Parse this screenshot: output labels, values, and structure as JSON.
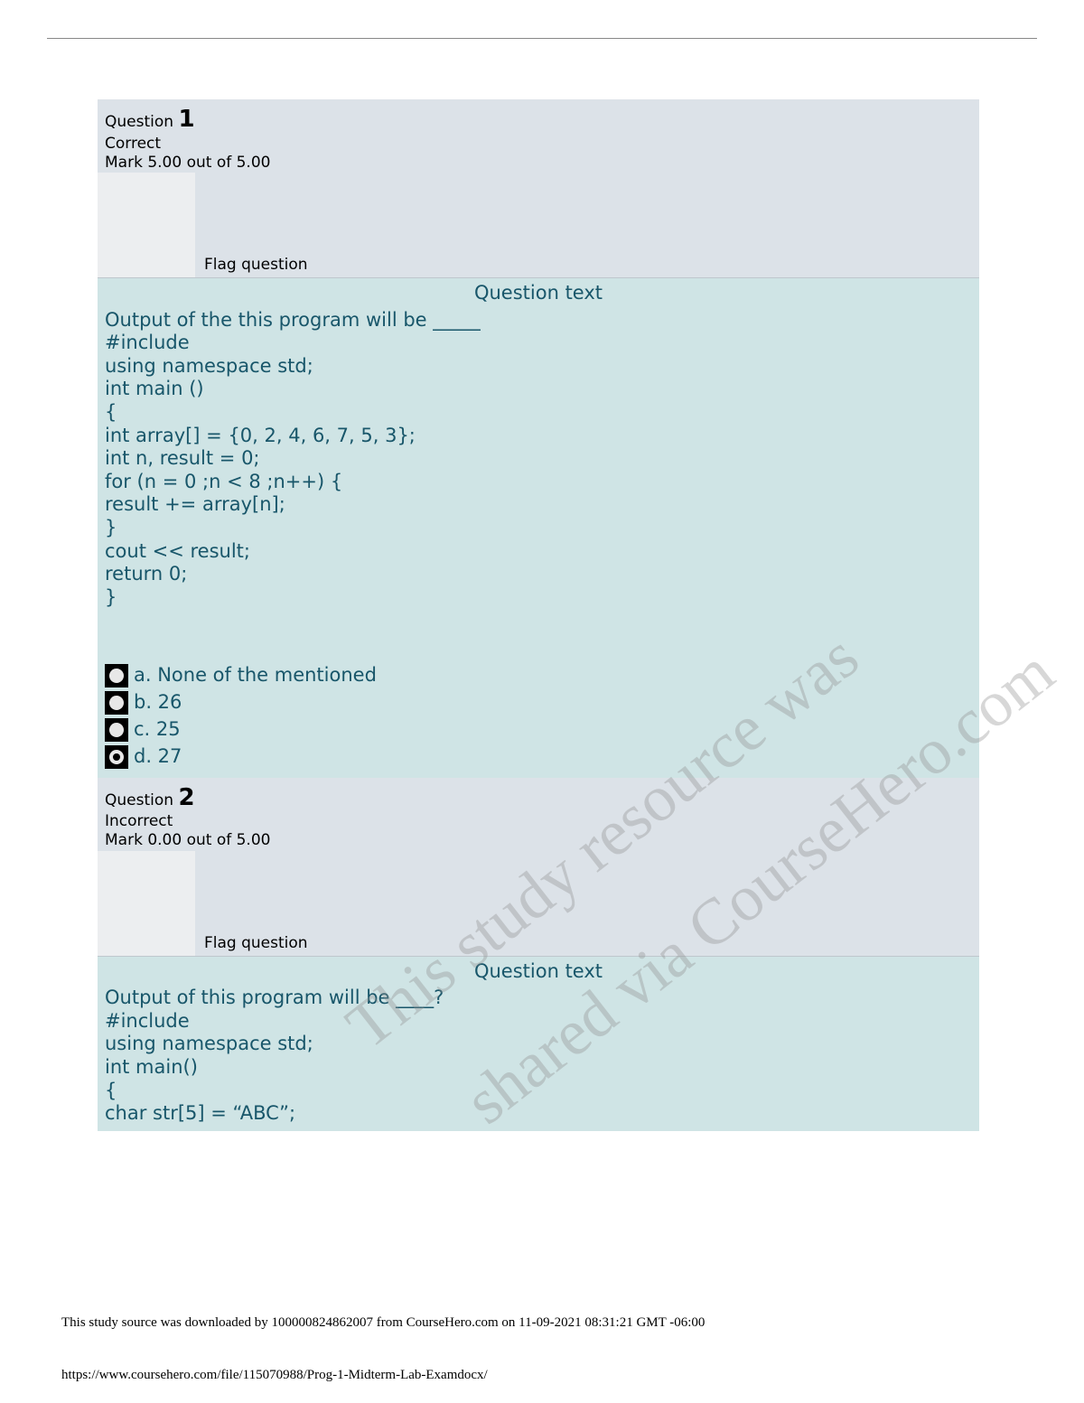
{
  "colors": {
    "header_bg": "#dce2e8",
    "flag_box_bg": "#eceef0",
    "body_bg": "#cfe4e5",
    "body_text": "#18566a",
    "page_bg": "#ffffff",
    "radio_bg": "#000000",
    "watermark": "rgba(140,140,140,0.35)"
  },
  "q1": {
    "label": "Question",
    "number": "1",
    "status": "Correct",
    "mark": "Mark 5.00 out of 5.00",
    "flag": "Flag question",
    "title": "Question text",
    "prompt": "Output of the this program will be _____",
    "code": [
      "#include",
      "using namespace std;",
      "int main ()",
      "{",
      "int array[] = {0, 2, 4, 6, 7, 5, 3};",
      "int n, result = 0;",
      "for (n = 0 ;n < 8 ;n++) {",
      "result += array[n];",
      "}",
      "cout << result;",
      "return 0;",
      "}"
    ],
    "options": [
      {
        "label": "a. None of the mentioned",
        "selected": false
      },
      {
        "label": "b. 26",
        "selected": false
      },
      {
        "label": "c. 25",
        "selected": false
      },
      {
        "label": "d. 27",
        "selected": true
      }
    ]
  },
  "q2": {
    "label": "Question",
    "number": "2",
    "status": "Incorrect",
    "mark": "Mark 0.00 out of 5.00",
    "flag": "Flag question",
    "title": "Question text",
    "prompt": "Output of this program will be ____?",
    "code": [
      "#include",
      "using namespace std;",
      "int main()",
      "{",
      "char str[5] = “ABC”;"
    ]
  },
  "watermark": {
    "line1": "This study resource was",
    "line2": "shared via CourseHero.com"
  },
  "footer": {
    "download": "This study source was downloaded by 100000824862007 from CourseHero.com on 11-09-2021 08:31:21 GMT -06:00",
    "url": "https://www.coursehero.com/file/115070988/Prog-1-Midterm-Lab-Examdocx/"
  }
}
